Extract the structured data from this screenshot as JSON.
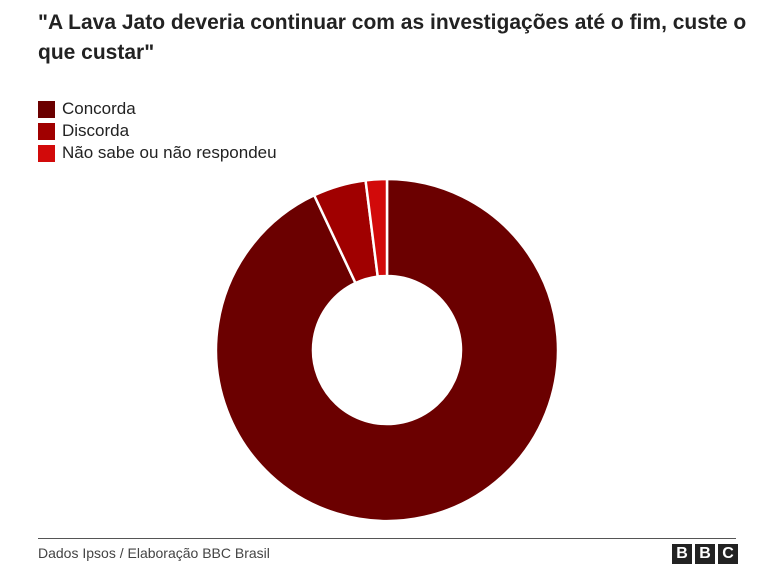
{
  "chart_data": {
    "type": "donut",
    "title": "\"A Lava Jato deveria continuar com as investigações até o fim, custe o que custar\"",
    "categories": [
      "Concorda",
      "Discorda",
      "Não sabe ou não respondeu"
    ],
    "values": [
      93,
      5,
      2
    ],
    "colors": [
      "#6b0000",
      "#a00000",
      "#d20a0a"
    ],
    "source": "Dados Ipsos / Elaboração BBC Brasil",
    "logo": [
      "B",
      "B",
      "C"
    ]
  }
}
